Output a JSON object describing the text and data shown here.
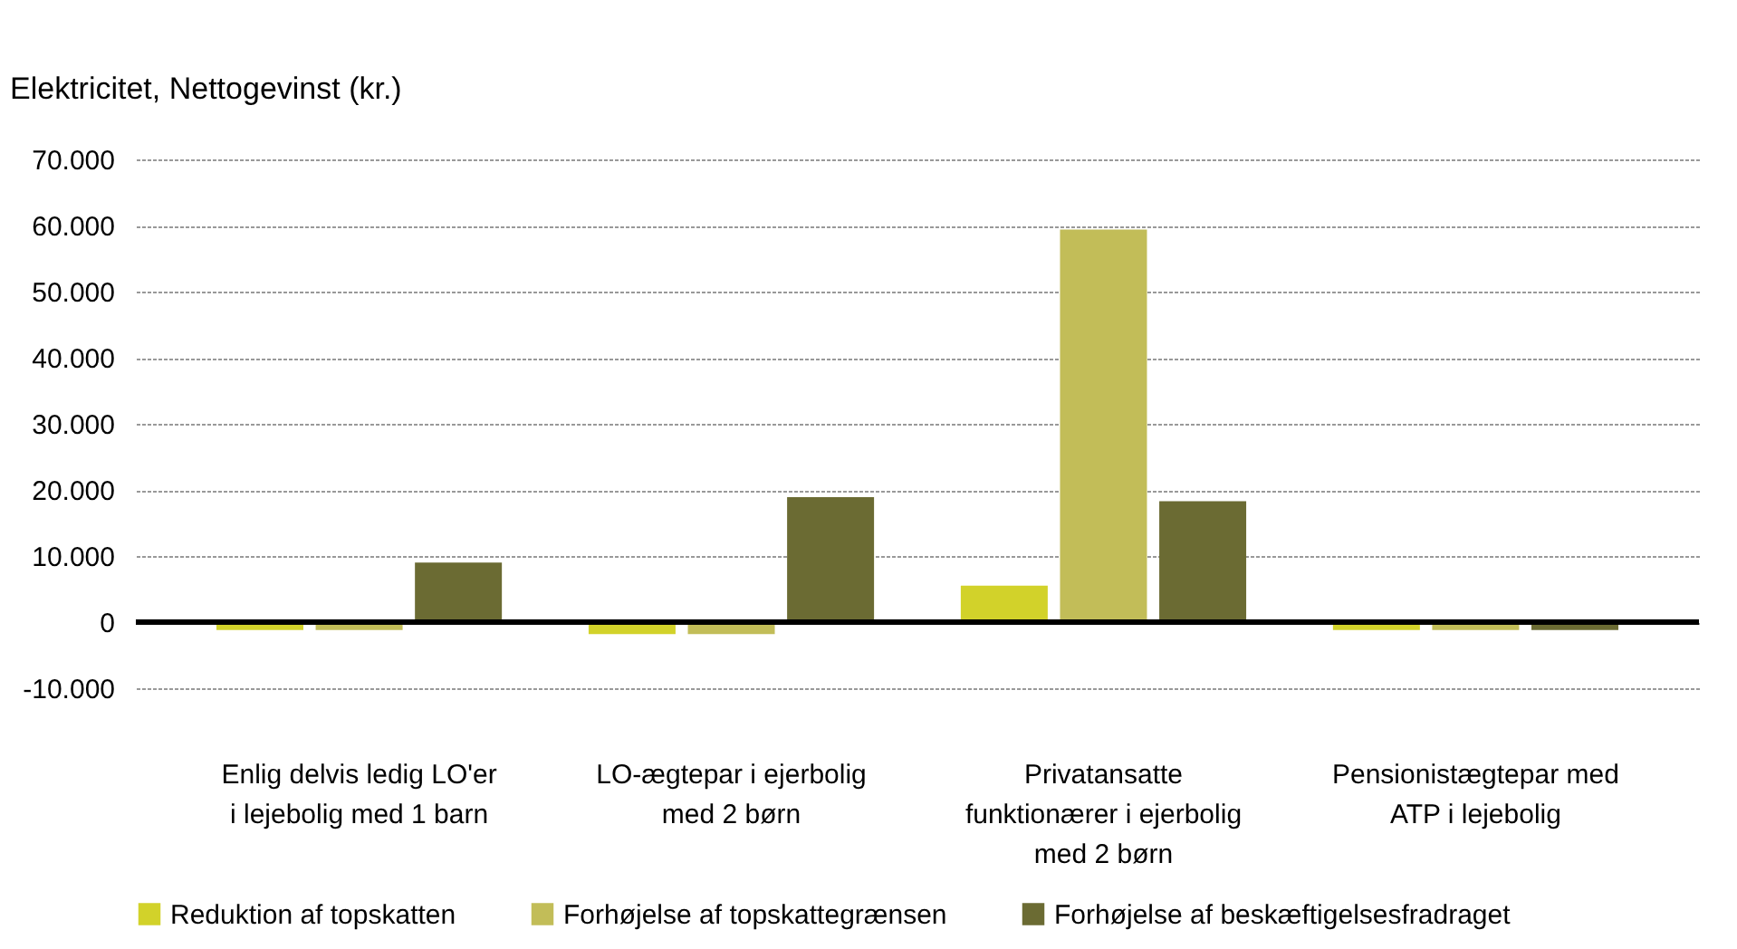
{
  "chart_data": {
    "type": "bar",
    "ylabel": "Elektricitet, Nettogevinst (kr.)",
    "categories": [
      "Enlig delvis ledig LO'er i lejebolig med 1 barn",
      "LO-ægtepar i ejerbolig med 2 børn",
      "Privatansatte funktionærer i ejerbolig med 2 børn",
      "Pensionistægtepar med ATP  i lejebolig"
    ],
    "series": [
      {
        "name": "Reduktion af topskatten",
        "color": "#d2d22a",
        "values": [
          -1200,
          -1800,
          5500,
          -1200
        ]
      },
      {
        "name": "Forhøjelse af topskattegrænsen",
        "color": "#c2bd58",
        "values": [
          -1200,
          -1800,
          59400,
          -1200
        ]
      },
      {
        "name": "Forhøjelse af beskæftigelsesfradraget",
        "color": "#6b6b33",
        "values": [
          9000,
          18900,
          18300,
          -1200
        ]
      }
    ],
    "ylim": [
      -10000,
      70000
    ],
    "yticks": [
      {
        "value": -10000,
        "label": "-10.000"
      },
      0,
      {
        "value": 10000,
        "label": "10.000"
      },
      {
        "value": 20000,
        "label": "20.000"
      },
      {
        "value": 30000,
        "label": "30.000"
      },
      {
        "value": 40000,
        "label": "40.000"
      },
      {
        "value": 50000,
        "label": "50.000"
      },
      {
        "value": 60000,
        "label": "60.000"
      },
      {
        "value": 70000,
        "label": "70.000"
      }
    ],
    "grid": "y",
    "legend": "bottom"
  }
}
